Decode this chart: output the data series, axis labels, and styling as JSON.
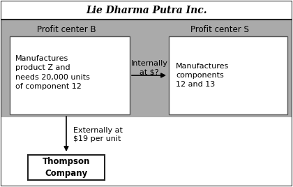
{
  "title": "Lie Dharma Putra Inc.",
  "title_fontsize": 10,
  "profit_center_b_label": "Profit center B",
  "profit_center_s_label": "Profit center S",
  "box_b_text": "Manufactures\nproduct Z and\nneeds 20,000 units\nof component 12",
  "box_s_text": "Manufactures\ncomponents\n12 and 13",
  "arrow_internal_label": "Internally\nat $?",
  "arrow_external_label": "Externally at\n$19 per unit",
  "thompson_label": "Thompson\nCompany",
  "bg_color": "#aaaaaa",
  "box_color": "#ffffff",
  "title_bg_color": "#ffffff",
  "outer_border_color": "#222222",
  "inner_border_color": "#555555",
  "text_color": "#000000",
  "fig_bg": "#ffffff"
}
